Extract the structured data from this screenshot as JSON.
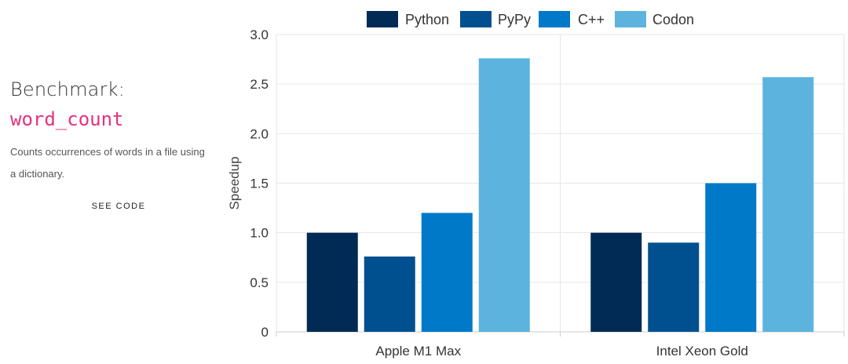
{
  "info": {
    "title": "Benchmark:",
    "name": "word_count",
    "description": "Counts occurrences of words in a file using a dictionary.",
    "link_label": "SEE CODE"
  },
  "colors": {
    "Python": "#012b55",
    "PyPy": "#00508f",
    "C++": "#0079c8",
    "Codon": "#5cb4de",
    "accent": "#e8317e"
  },
  "chart_data": {
    "type": "bar",
    "categories": [
      "Apple M1 Max",
      "Intel Xeon Gold"
    ],
    "series": [
      {
        "name": "Python",
        "values": [
          1.0,
          1.0
        ]
      },
      {
        "name": "PyPy",
        "values": [
          0.76,
          0.9
        ]
      },
      {
        "name": "C++",
        "values": [
          1.2,
          1.5
        ]
      },
      {
        "name": "Codon",
        "values": [
          2.76,
          2.57
        ]
      }
    ],
    "ylabel": "Speedup",
    "xlabel": "",
    "ylim": [
      0,
      3.0
    ],
    "yticks": [
      "0",
      "0.5",
      "1.0",
      "1.5",
      "2.0",
      "2.5",
      "3.0"
    ],
    "grid": true,
    "legend": "top-center"
  }
}
